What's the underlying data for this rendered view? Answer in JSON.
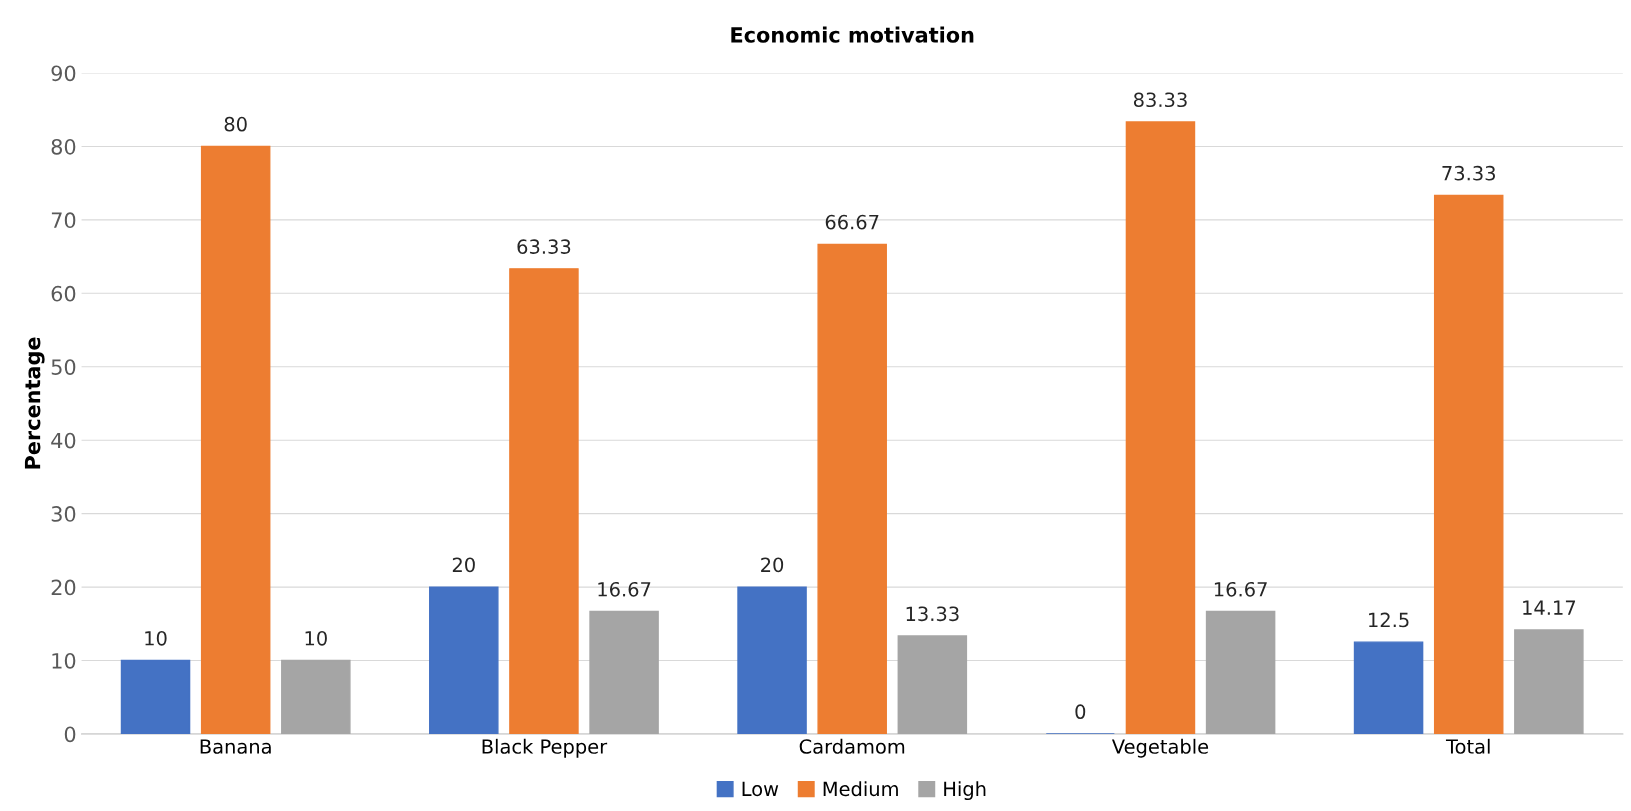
{
  "chart_data": {
    "type": "bar",
    "title": "Economic motivation",
    "ylabel": "Percentage",
    "categories": [
      "Banana",
      "Black Pepper",
      "Cardamom",
      "Vegetable",
      "Total"
    ],
    "series": [
      {
        "name": "Low",
        "color": "#4472c4",
        "values": [
          10,
          20,
          20,
          0,
          12.5
        ]
      },
      {
        "name": "Medium",
        "color": "#ed7d31",
        "values": [
          80,
          63.33,
          66.67,
          83.33,
          73.33
        ]
      },
      {
        "name": "High",
        "color": "#a5a5a5",
        "values": [
          10,
          16.67,
          13.33,
          16.67,
          14.17
        ]
      }
    ],
    "ylim": [
      0,
      90
    ],
    "yticks": [
      0,
      10,
      20,
      30,
      40,
      50,
      60,
      70,
      80,
      90
    ],
    "grid": "y",
    "legend": "bottom",
    "data_labels": true
  }
}
